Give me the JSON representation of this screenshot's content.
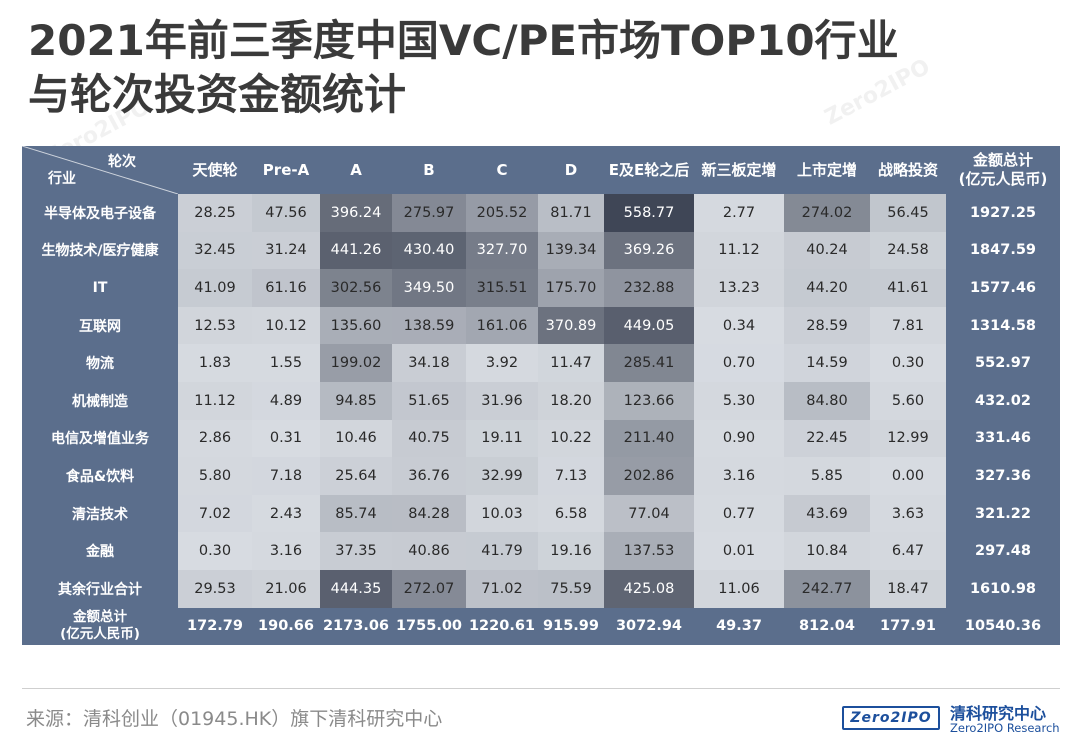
{
  "title": {
    "line1": "2021年前三季度中国VC/PE市场TOP10行业",
    "line2": "与轮次投资金额统计"
  },
  "chart_data": {
    "type": "heatmap",
    "title": "2021年前三季度中国VC/PE市场TOP10行业与轮次投资金额统计",
    "corner_top": "轮次",
    "corner_bottom": "行业",
    "columns": [
      "天使轮",
      "Pre-A",
      "A",
      "B",
      "C",
      "D",
      "E及E轮之后",
      "新三板定增",
      "上市定增",
      "战略投资"
    ],
    "total_column_label": [
      "金额总计",
      "(亿元人民币)"
    ],
    "rows": [
      {
        "label": "半导体及电子设备",
        "values": [
          28.25,
          47.56,
          396.24,
          275.97,
          205.52,
          81.71,
          558.77,
          2.77,
          274.02,
          56.45
        ],
        "total": "1927.25"
      },
      {
        "label": "生物技术/医疗健康",
        "values": [
          32.45,
          31.24,
          441.26,
          430.4,
          327.7,
          139.34,
          369.26,
          11.12,
          40.24,
          24.58
        ],
        "total": "1847.59"
      },
      {
        "label": "IT",
        "values": [
          41.09,
          61.16,
          302.56,
          349.5,
          315.51,
          175.7,
          232.88,
          13.23,
          44.2,
          41.61
        ],
        "total": "1577.46"
      },
      {
        "label": "互联网",
        "values": [
          12.53,
          10.12,
          135.6,
          138.59,
          161.06,
          370.89,
          449.05,
          0.34,
          28.59,
          7.81
        ],
        "total": "1314.58"
      },
      {
        "label": "物流",
        "values": [
          1.83,
          1.55,
          199.02,
          34.18,
          3.92,
          11.47,
          285.41,
          0.7,
          14.59,
          0.3
        ],
        "total": "552.97"
      },
      {
        "label": "机械制造",
        "values": [
          11.12,
          4.89,
          94.85,
          51.65,
          31.96,
          18.2,
          123.66,
          5.3,
          84.8,
          5.6
        ],
        "total": "432.02"
      },
      {
        "label": "电信及增值业务",
        "values": [
          2.86,
          0.31,
          10.46,
          40.75,
          19.11,
          10.22,
          211.4,
          0.9,
          22.45,
          12.99
        ],
        "total": "331.46"
      },
      {
        "label": "食品&饮料",
        "values": [
          5.8,
          7.18,
          25.64,
          36.76,
          32.99,
          7.13,
          202.86,
          3.16,
          5.85,
          0.0
        ],
        "total": "327.36"
      },
      {
        "label": "清洁技术",
        "values": [
          7.02,
          2.43,
          85.74,
          84.28,
          10.03,
          6.58,
          77.04,
          0.77,
          43.69,
          3.63
        ],
        "total": "321.22"
      },
      {
        "label": "金融",
        "values": [
          0.3,
          3.16,
          37.35,
          40.86,
          41.79,
          19.16,
          137.53,
          0.01,
          10.84,
          6.47
        ],
        "total": "297.48"
      },
      {
        "label": "其余行业合计",
        "values": [
          29.53,
          21.06,
          444.35,
          272.07,
          71.02,
          75.59,
          425.08,
          11.06,
          242.77,
          18.47
        ],
        "total": "1610.98"
      }
    ],
    "column_totals_label": [
      "金额总计",
      "(亿元人民币)"
    ],
    "column_totals": [
      "172.79",
      "190.66",
      "2173.06",
      "1755.00",
      "1220.61",
      "915.99",
      "3072.94",
      "49.37",
      "812.04",
      "177.91"
    ],
    "grand_total": "10540.36",
    "colors": {
      "frame": "#5b6e8c",
      "cell_low": "#d7dbe1",
      "cell_high": "#3f4656"
    }
  },
  "footer": {
    "source": "来源：清科创业（01945.HK）旗下清科研究中心",
    "logo_box": "Zero2IPO",
    "logo_name": "清科研究中心",
    "logo_sub": "Zero2IPO Research"
  }
}
